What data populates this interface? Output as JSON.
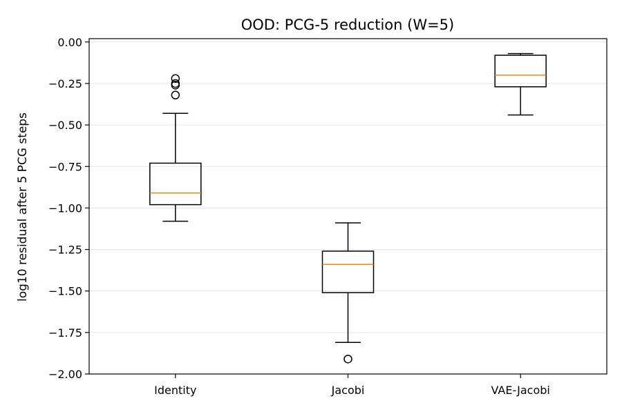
{
  "chart_data": {
    "type": "box",
    "title": "OOD: PCG-5 reduction (W=5)",
    "xlabel": "",
    "ylabel": "log10 residual after 5 PCG steps",
    "ylim": [
      -2.0,
      0.02
    ],
    "yticks": [
      0.0,
      -0.25,
      -0.5,
      -0.75,
      -1.0,
      -1.25,
      -1.5,
      -1.75,
      -2.0
    ],
    "ytick_labels": [
      "0.00",
      "−0.25",
      "−0.50",
      "−0.75",
      "−1.00",
      "−1.25",
      "−1.50",
      "−1.75",
      "−2.00"
    ],
    "grid": "horizontal",
    "median_color": "#ff7f0e",
    "categories": [
      "Identity",
      "Jacobi",
      "VAE-Jacobi"
    ],
    "boxes": [
      {
        "label": "Identity",
        "whisker_low": -1.08,
        "q1": -0.98,
        "median": -0.91,
        "q3": -0.73,
        "whisker_high": -0.43,
        "fliers": [
          -0.22,
          -0.25,
          -0.26,
          -0.32
        ]
      },
      {
        "label": "Jacobi",
        "whisker_low": -1.81,
        "q1": -1.51,
        "median": -1.34,
        "q3": -1.26,
        "whisker_high": -1.09,
        "fliers": [
          -1.91
        ]
      },
      {
        "label": "VAE-Jacobi",
        "whisker_low": -0.44,
        "q1": -0.27,
        "median": -0.2,
        "q3": -0.08,
        "whisker_high": -0.07,
        "fliers": []
      }
    ]
  }
}
